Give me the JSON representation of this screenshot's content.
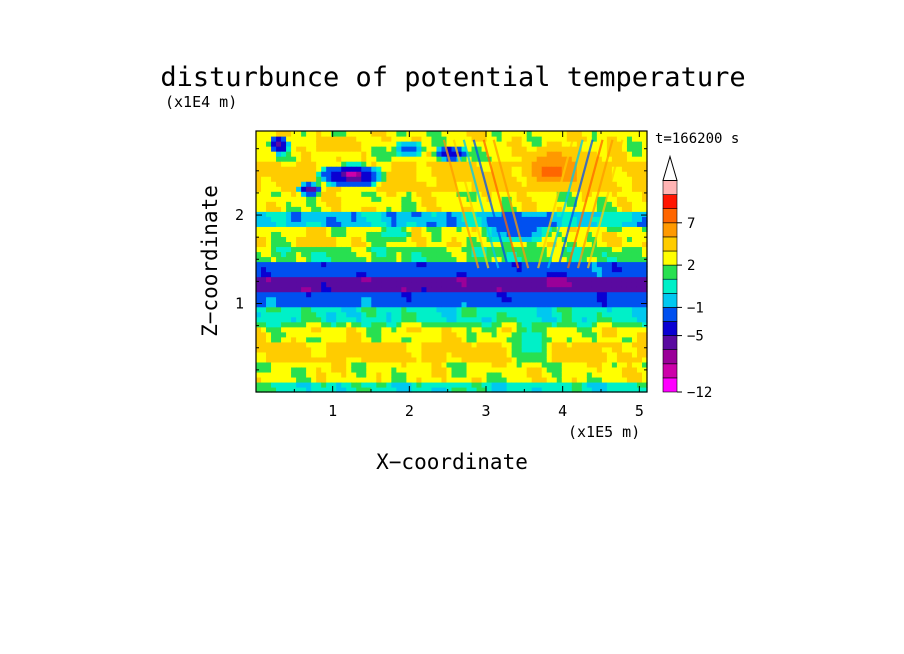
{
  "chart_data": {
    "type": "heatmap",
    "title": "disturbunce of potential temperature",
    "time_label": "t=166200 s",
    "xlabel": "X−coordinate",
    "ylabel": "Z−coordinate",
    "x_unit": "(x1E5 m)",
    "y_unit": "(x1E4 m)",
    "xlim": [
      0,
      5.1
    ],
    "ylim": [
      0,
      2.95
    ],
    "x_ticks": [
      {
        "value": 1,
        "label": "1"
      },
      {
        "value": 2,
        "label": "2"
      },
      {
        "value": 3,
        "label": "3"
      },
      {
        "value": 4,
        "label": "4"
      },
      {
        "value": 5,
        "label": "5"
      }
    ],
    "y_ticks": [
      {
        "value": 1,
        "label": "1"
      },
      {
        "value": 2,
        "label": "2"
      }
    ],
    "colorbar": {
      "levels": [
        -12,
        -10,
        -8,
        -7,
        -5,
        -3,
        -1,
        0,
        1,
        2,
        3,
        5,
        7,
        8,
        10,
        12
      ],
      "colors": [
        "#ff00ff",
        "#cc00aa",
        "#9a0099",
        "#5a0aa0",
        "#0a00d2",
        "#0050f0",
        "#00c8f0",
        "#00f0c8",
        "#28e050",
        "#ffff00",
        "#ffcc00",
        "#ff9900",
        "#ff6600",
        "#ff1500",
        "#ffb4b4"
      ],
      "extend": "max",
      "labels": [
        {
          "value": -12,
          "label": "−12"
        },
        {
          "value": -5,
          "label": "−5"
        },
        {
          "value": -1,
          "label": "−1"
        },
        {
          "value": 2,
          "label": "2"
        },
        {
          "value": 7,
          "label": "7"
        }
      ]
    },
    "bands": [
      {
        "z": [
          0.0,
          0.1
        ],
        "value": 0.5
      },
      {
        "z": [
          0.1,
          0.35
        ],
        "value": 2.5
      },
      {
        "z": [
          0.35,
          0.55
        ],
        "value": 3.5
      },
      {
        "z": [
          0.55,
          0.72
        ],
        "value": 2.5
      },
      {
        "z": [
          0.72,
          0.8
        ],
        "value": 1.5
      },
      {
        "z": [
          0.8,
          0.95
        ],
        "value": 0.5
      },
      {
        "z": [
          0.95,
          1.15
        ],
        "value": -2.0
      },
      {
        "z": [
          1.15,
          1.32
        ],
        "value": -6.0
      },
      {
        "z": [
          1.32,
          1.5
        ],
        "value": -2.0
      },
      {
        "z": [
          1.5,
          1.62
        ],
        "value": 1.5
      },
      {
        "z": [
          1.62,
          1.85
        ],
        "value": 2.5
      },
      {
        "z": [
          1.85,
          2.05
        ],
        "value": -0.5
      },
      {
        "z": [
          2.05,
          2.25
        ],
        "value": 2.5
      },
      {
        "z": [
          2.25,
          2.6
        ],
        "value": 3.5
      },
      {
        "z": [
          2.6,
          2.95
        ],
        "value": 2.5
      }
    ],
    "features": [
      {
        "x": 0.3,
        "z": 2.8,
        "rx": 0.15,
        "rz": 0.12,
        "value": -6.0
      },
      {
        "x": 1.25,
        "z": 2.45,
        "rx": 0.5,
        "rz": 0.16,
        "value": -6.0
      },
      {
        "x": 1.25,
        "z": 2.45,
        "rx": 0.15,
        "rz": 0.05,
        "value": -9.0
      },
      {
        "x": 0.7,
        "z": 2.3,
        "rx": 0.2,
        "rz": 0.08,
        "value": -6.0
      },
      {
        "x": 2.0,
        "z": 2.75,
        "rx": 0.25,
        "rz": 0.12,
        "value": -2.0
      },
      {
        "x": 2.55,
        "z": 2.7,
        "rx": 0.25,
        "rz": 0.1,
        "value": -5.0
      },
      {
        "x": 1.1,
        "z": 2.8,
        "rx": 0.3,
        "rz": 0.1,
        "value": 5.0
      },
      {
        "x": 3.9,
        "z": 2.55,
        "rx": 0.5,
        "rz": 0.3,
        "value": 6.0
      },
      {
        "x": 3.85,
        "z": 2.5,
        "rx": 0.25,
        "rz": 0.1,
        "value": 7.5
      },
      {
        "x": 4.35,
        "z": 2.6,
        "rx": 0.2,
        "rz": 0.12,
        "value": 5.0
      },
      {
        "x": 3.4,
        "z": 1.85,
        "rx": 0.5,
        "rz": 0.2,
        "value": -2.0
      },
      {
        "x": 4.6,
        "z": 1.95,
        "rx": 0.3,
        "rz": 0.15,
        "value": 0.5
      },
      {
        "x": 1.8,
        "z": 1.8,
        "rx": 0.3,
        "rz": 0.1,
        "value": 0.5
      },
      {
        "x": 0.8,
        "z": 1.7,
        "rx": 0.4,
        "rz": 0.1,
        "value": 3.5
      },
      {
        "x": 1.5,
        "z": 0.45,
        "rx": 0.4,
        "rz": 0.1,
        "value": 5.0
      },
      {
        "x": 3.6,
        "z": 0.55,
        "rx": 0.35,
        "rz": 0.3,
        "value": 0.5
      },
      {
        "x": 3.9,
        "z": 1.25,
        "rx": 0.3,
        "rz": 0.1,
        "value": -7.5
      },
      {
        "x": 0.05,
        "z": 1.25,
        "rx": 0.06,
        "rz": 0.08,
        "value": -6.0
      }
    ]
  }
}
